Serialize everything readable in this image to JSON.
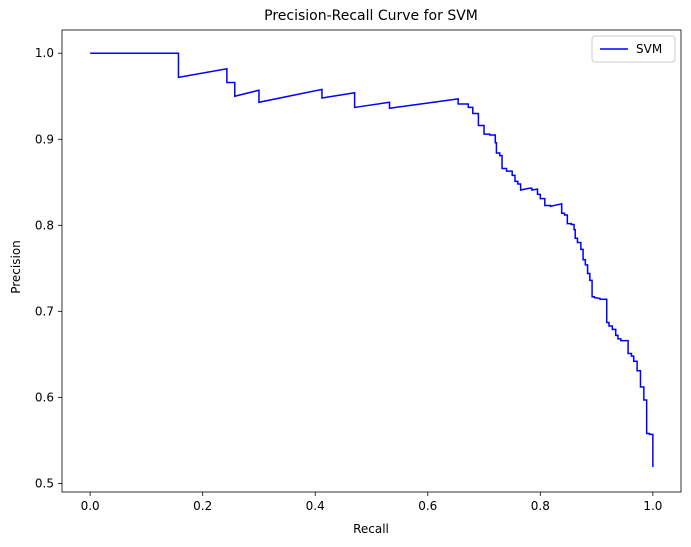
{
  "chart_data": {
    "type": "line",
    "title": "Precision-Recall Curve for SVM",
    "xlabel": "Recall",
    "ylabel": "Precision",
    "xlim": [
      -0.05,
      1.05
    ],
    "ylim": [
      0.49,
      1.027
    ],
    "xticks": [
      0.0,
      0.2,
      0.4,
      0.6,
      0.8,
      1.0
    ],
    "xtick_labels": [
      "0.0",
      "0.2",
      "0.4",
      "0.6",
      "0.8",
      "1.0"
    ],
    "yticks": [
      0.5,
      0.6,
      0.7,
      0.8,
      0.9,
      1.0
    ],
    "ytick_labels": [
      "0.5",
      "0.6",
      "0.7",
      "0.8",
      "0.9",
      "1.0"
    ],
    "grid": false,
    "legend": {
      "position": "top-right",
      "entries": [
        "SVM"
      ]
    },
    "series": [
      {
        "name": "SVM",
        "color": "#0000ff",
        "step": true,
        "points": [
          [
            0.0,
            1.0
          ],
          [
            0.157,
            1.0
          ],
          [
            0.157,
            0.972
          ],
          [
            0.243,
            0.982
          ],
          [
            0.243,
            0.966
          ],
          [
            0.257,
            0.966
          ],
          [
            0.257,
            0.95
          ],
          [
            0.3,
            0.957
          ],
          [
            0.3,
            0.943
          ],
          [
            0.412,
            0.958
          ],
          [
            0.412,
            0.948
          ],
          [
            0.47,
            0.954
          ],
          [
            0.47,
            0.937
          ],
          [
            0.532,
            0.943
          ],
          [
            0.532,
            0.936
          ],
          [
            0.654,
            0.947
          ],
          [
            0.654,
            0.941
          ],
          [
            0.672,
            0.941
          ],
          [
            0.672,
            0.937
          ],
          [
            0.68,
            0.937
          ],
          [
            0.68,
            0.93
          ],
          [
            0.69,
            0.93
          ],
          [
            0.69,
            0.916
          ],
          [
            0.7,
            0.916
          ],
          [
            0.7,
            0.906
          ],
          [
            0.71,
            0.906
          ],
          [
            0.71,
            0.905
          ],
          [
            0.72,
            0.905
          ],
          [
            0.72,
            0.896
          ],
          [
            0.722,
            0.896
          ],
          [
            0.722,
            0.884
          ],
          [
            0.728,
            0.884
          ],
          [
            0.728,
            0.881
          ],
          [
            0.732,
            0.881
          ],
          [
            0.732,
            0.866
          ],
          [
            0.74,
            0.866
          ],
          [
            0.74,
            0.863
          ],
          [
            0.75,
            0.863
          ],
          [
            0.75,
            0.858
          ],
          [
            0.755,
            0.858
          ],
          [
            0.755,
            0.851
          ],
          [
            0.76,
            0.851
          ],
          [
            0.76,
            0.848
          ],
          [
            0.765,
            0.848
          ],
          [
            0.765,
            0.841
          ],
          [
            0.78,
            0.843
          ],
          [
            0.785,
            0.843
          ],
          [
            0.785,
            0.841
          ],
          [
            0.795,
            0.842
          ],
          [
            0.795,
            0.836
          ],
          [
            0.8,
            0.836
          ],
          [
            0.8,
            0.831
          ],
          [
            0.808,
            0.831
          ],
          [
            0.808,
            0.823
          ],
          [
            0.818,
            0.823
          ],
          [
            0.818,
            0.822
          ],
          [
            0.838,
            0.825
          ],
          [
            0.838,
            0.814
          ],
          [
            0.843,
            0.814
          ],
          [
            0.843,
            0.812
          ],
          [
            0.848,
            0.812
          ],
          [
            0.848,
            0.802
          ],
          [
            0.855,
            0.802
          ],
          [
            0.855,
            0.801
          ],
          [
            0.86,
            0.801
          ],
          [
            0.86,
            0.795
          ],
          [
            0.862,
            0.795
          ],
          [
            0.862,
            0.785
          ],
          [
            0.866,
            0.785
          ],
          [
            0.866,
            0.78
          ],
          [
            0.872,
            0.78
          ],
          [
            0.872,
            0.772
          ],
          [
            0.876,
            0.772
          ],
          [
            0.876,
            0.76
          ],
          [
            0.88,
            0.76
          ],
          [
            0.88,
            0.754
          ],
          [
            0.884,
            0.754
          ],
          [
            0.884,
            0.744
          ],
          [
            0.888,
            0.744
          ],
          [
            0.888,
            0.736
          ],
          [
            0.892,
            0.736
          ],
          [
            0.892,
            0.717
          ],
          [
            0.896,
            0.717
          ],
          [
            0.896,
            0.716
          ],
          [
            0.906,
            0.715
          ],
          [
            0.906,
            0.714
          ],
          [
            0.918,
            0.714
          ],
          [
            0.918,
            0.687
          ],
          [
            0.922,
            0.687
          ],
          [
            0.922,
            0.683
          ],
          [
            0.928,
            0.683
          ],
          [
            0.928,
            0.679
          ],
          [
            0.934,
            0.679
          ],
          [
            0.934,
            0.672
          ],
          [
            0.938,
            0.672
          ],
          [
            0.938,
            0.668
          ],
          [
            0.943,
            0.668
          ],
          [
            0.943,
            0.666
          ],
          [
            0.956,
            0.666
          ],
          [
            0.956,
            0.651
          ],
          [
            0.962,
            0.651
          ],
          [
            0.962,
            0.648
          ],
          [
            0.966,
            0.648
          ],
          [
            0.966,
            0.642
          ],
          [
            0.972,
            0.642
          ],
          [
            0.972,
            0.631
          ],
          [
            0.978,
            0.631
          ],
          [
            0.978,
            0.612
          ],
          [
            0.984,
            0.612
          ],
          [
            0.984,
            0.597
          ],
          [
            0.989,
            0.597
          ],
          [
            0.989,
            0.558
          ],
          [
            0.994,
            0.558
          ],
          [
            0.994,
            0.557
          ],
          [
            1.0,
            0.557
          ],
          [
            1.0,
            0.519
          ]
        ]
      }
    ]
  }
}
